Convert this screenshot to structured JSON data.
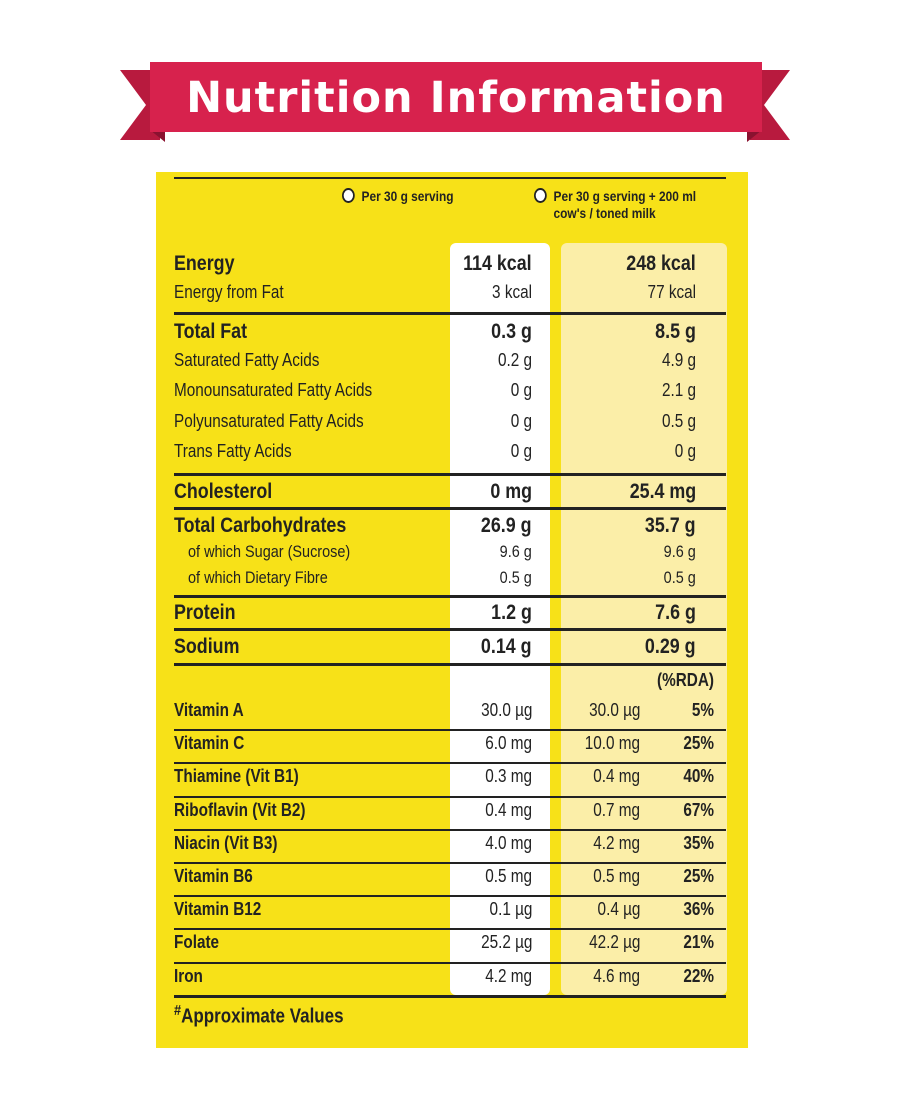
{
  "banner": {
    "title": "Nutrition Information",
    "color": "#d7224d"
  },
  "panel": {
    "background": "#f7e118"
  },
  "headers": {
    "per_serving": "Per 30 g serving",
    "with_milk_line1": "Per 30 g serving + 200 ml",
    "with_milk_line2": "cow's / toned milk",
    "rda": "(%RDA)"
  },
  "macros": [
    {
      "label": "Energy",
      "a": "114 kcal",
      "b": "248 kcal",
      "style": "big"
    },
    {
      "label": "Energy from Fat",
      "a": "3 kcal",
      "b": "77 kcal",
      "style": "med"
    },
    {
      "label": "Total Fat",
      "a": "0.3 g",
      "b": "8.5 g",
      "style": "big"
    },
    {
      "label": "Saturated Fatty Acids",
      "a": "0.2 g",
      "b": "4.9 g",
      "style": "med"
    },
    {
      "label": "Monounsaturated Fatty Acids",
      "a": "0 g",
      "b": "2.1 g",
      "style": "med"
    },
    {
      "label": "Polyunsaturated Fatty Acids",
      "a": "0 g",
      "b": "0.5 g",
      "style": "med"
    },
    {
      "label": "Trans Fatty Acids",
      "a": "0 g",
      "b": "0 g",
      "style": "med"
    },
    {
      "label": "Cholesterol",
      "a": "0 mg",
      "b": "25.4 mg",
      "style": "big"
    },
    {
      "label": "Total Carbohydrates",
      "a": "26.9 g",
      "b": "35.7 g",
      "style": "big"
    },
    {
      "label": "of which Sugar (Sucrose)",
      "a": "9.6 g",
      "b": "9.6 g",
      "style": "sm"
    },
    {
      "label": "of which Dietary Fibre",
      "a": "0.5 g",
      "b": "0.5 g",
      "style": "sm"
    },
    {
      "label": "Protein",
      "a": "1.2 g",
      "b": "7.6 g",
      "style": "big"
    },
    {
      "label": "Sodium",
      "a": "0.14 g",
      "b": "0.29 g",
      "style": "big"
    }
  ],
  "vitamins": [
    {
      "label": "Vitamin A",
      "a": "30.0 µg",
      "b": "30.0 µg",
      "rda": "5%"
    },
    {
      "label": "Vitamin C",
      "a": "6.0 mg",
      "b": "10.0 mg",
      "rda": "25%"
    },
    {
      "label": "Thiamine (Vit B1)",
      "a": "0.3 mg",
      "b": "0.4 mg",
      "rda": "40%"
    },
    {
      "label": "Riboflavin (Vit B2)",
      "a": "0.4 mg",
      "b": "0.7 mg",
      "rda": "67%"
    },
    {
      "label": "Niacin (Vit B3)",
      "a": "4.0 mg",
      "b": "4.2 mg",
      "rda": "35%"
    },
    {
      "label": "Vitamin B6",
      "a": "0.5 mg",
      "b": "0.5 mg",
      "rda": "25%"
    },
    {
      "label": "Vitamin B12",
      "a": "0.1 µg",
      "b": "0.4 µg",
      "rda": "36%"
    },
    {
      "label": "Folate",
      "a": "25.2 µg",
      "b": "42.2 µg",
      "rda": "21%"
    },
    {
      "label": "Iron",
      "a": "4.2 mg",
      "b": "4.6 mg",
      "rda": "22%"
    }
  ],
  "footnote": {
    "mark": "#",
    "text": "Approximate Values"
  }
}
